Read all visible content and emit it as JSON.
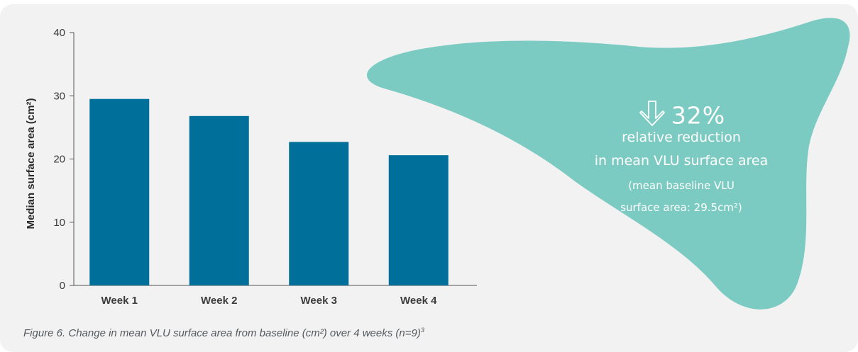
{
  "chart_data": {
    "type": "bar",
    "categories": [
      "Week 1",
      "Week 2",
      "Week 3",
      "Week 4"
    ],
    "values": [
      29.5,
      26.8,
      22.7,
      20.6
    ],
    "ylabel": "Median surface area (cm²)",
    "xlabel": "",
    "ylim": [
      0,
      40
    ],
    "yticks": [
      0,
      10,
      20,
      30,
      40
    ],
    "grid": false,
    "bar_color": "#006f9a"
  },
  "callout": {
    "percent": "32%",
    "line1": "relative reduction",
    "line2": "in mean VLU surface area",
    "line3": "(mean baseline VLU",
    "line4": "surface area: 29.5cm²)",
    "blob_color": "#7ccbc2",
    "arrow_icon": "down-arrow-icon"
  },
  "caption": {
    "text": "Figure 6. Change in mean VLU surface area from baseline (cm²) over 4 weeks (n=9)",
    "superscript": "3"
  }
}
